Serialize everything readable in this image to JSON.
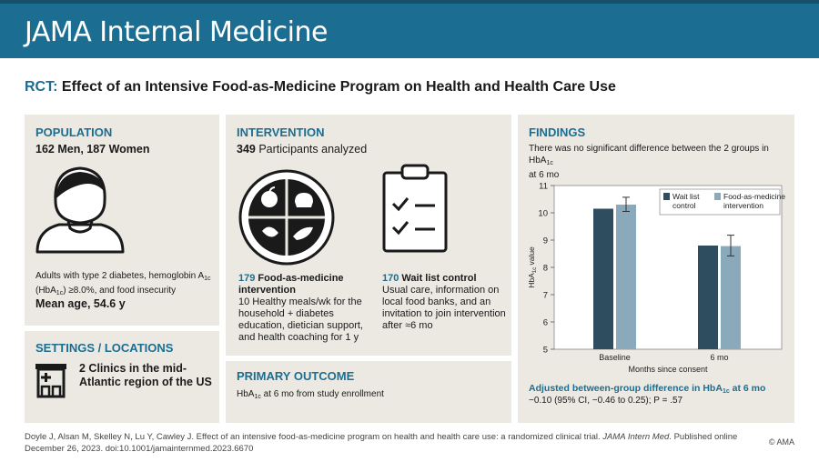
{
  "header": {
    "journal": "JAMA Internal Medicine"
  },
  "title": {
    "prefix": "RCT:",
    "text": "Effect of an Intensive Food-as-Medicine Program on Health and Health Care Use"
  },
  "population": {
    "heading": "POPULATION",
    "count_line": "162 Men, 187 Women",
    "criteria_1": "Adults with type 2 diabetes, hemoglobin A",
    "criteria_sub": "1c",
    "criteria_2": "(HbA",
    "criteria_3": ") ≥8.0%, and food insecurity",
    "mean_age": "Mean age, 54.6 y"
  },
  "settings": {
    "heading": "SETTINGS / LOCATIONS",
    "text": "2 Clinics in the mid-Atlantic region of the US"
  },
  "intervention": {
    "heading": "INTERVENTION",
    "analyzed_count": "349",
    "analyzed_label": "Participants analyzed",
    "arm1": {
      "count": "179",
      "name_line1": "Food-as-medicine",
      "name_line2": "intervention",
      "desc": "10 Healthy meals/wk for the household + diabetes education, dietician support, and health coaching for 1 y"
    },
    "arm2": {
      "count": "170",
      "name": "Wait list control",
      "desc": "Usual care, information on local food banks, and an invitation to join intervention after ≈6 mo"
    }
  },
  "primary_outcome": {
    "heading": "PRIMARY OUTCOME",
    "pre": "HbA",
    "sub": "1c",
    "post": " at 6 mo from study enrollment"
  },
  "findings": {
    "heading": "FINDINGS",
    "text_pre": "There was no significant difference between the 2 groups in HbA",
    "text_sub": "1c",
    "text_post": "at 6 mo",
    "adjusted_pre": "Adjusted between-group difference in HbA",
    "adjusted_sub": "1c",
    "adjusted_post": " at 6 mo",
    "adjusted_value": "−0.10 (95% CI, −0.46 to 0.25); P = .57"
  },
  "chart_data": {
    "type": "bar",
    "categories": [
      "Baseline",
      "6 mo"
    ],
    "series": [
      {
        "name": "Wait list control",
        "values": [
          10.15,
          8.8
        ],
        "ci_low": [
          null,
          null
        ],
        "ci_high": [
          null,
          null
        ]
      },
      {
        "name": "Food-as-medicine intervention",
        "values": [
          10.3,
          8.78
        ],
        "ci_low": [
          10.05,
          8.42
        ],
        "ci_high": [
          10.57,
          9.18
        ]
      }
    ],
    "legend": [
      "Wait list control",
      "Food-as-medicine intervention"
    ],
    "xlabel": "Months since consent",
    "ylabel": "HbA1c value",
    "ylabel_main": "HbA",
    "ylabel_sub": "1c",
    "ylabel_post": " value",
    "ylim": [
      5,
      11
    ],
    "yticks": [
      "5",
      "6",
      "7",
      "8",
      "9",
      "10",
      "11"
    ],
    "colors": [
      "#2e4d5f",
      "#8aa9bb"
    ]
  },
  "footer": {
    "citation_1": "Doyle J, Alsan M, Skelley N, Lu Y, Cawley J. Effect of an intensive food-as-medicine program on health and health care use: a randomized clinical trial. ",
    "citation_journal": "JAMA Intern Med",
    "citation_2": ". Published online December 26, 2023. doi:10.1001/jamainternmed.2023.6670",
    "copyright": "© AMA"
  }
}
